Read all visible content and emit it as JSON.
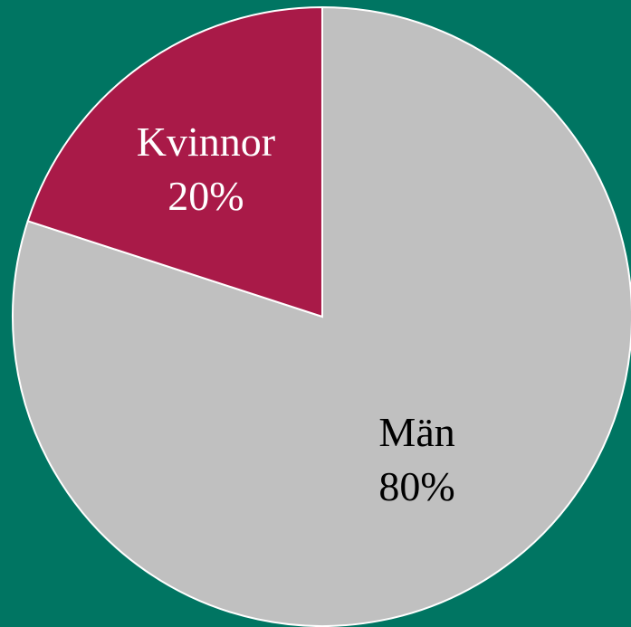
{
  "chart_data": {
    "type": "pie",
    "categories": [
      "Män",
      "Kvinnor"
    ],
    "values": [
      80,
      20
    ],
    "value_labels": [
      "80%",
      "20%"
    ],
    "colors": [
      "#c0c0c0",
      "#a91a48"
    ],
    "label_colors": [
      "#000000",
      "#ffffff"
    ]
  }
}
